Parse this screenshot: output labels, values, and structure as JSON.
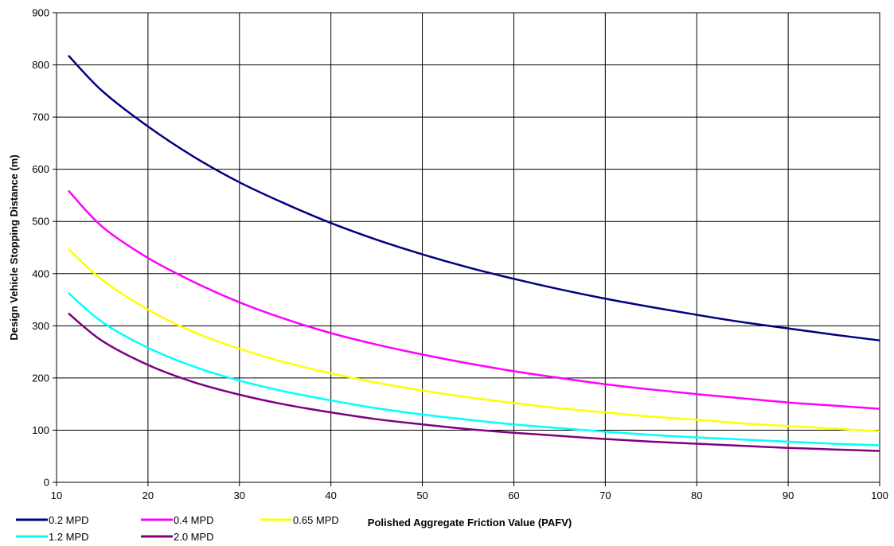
{
  "chart_data": {
    "type": "line",
    "title": "",
    "xlabel": "Polished Aggregate Friction Value  (PAFV)",
    "ylabel": "Design Vehicle Stopping Distance (m)",
    "xlim": [
      10,
      100
    ],
    "ylim": [
      0,
      900
    ],
    "xticks": [
      "10",
      "20",
      "30",
      "40",
      "50",
      "60",
      "70",
      "80",
      "90",
      "100"
    ],
    "yticks": [
      "0",
      "100",
      "200",
      "300",
      "400",
      "500",
      "600",
      "700",
      "800",
      "900"
    ],
    "grid": true,
    "legend_position": "bottom-left",
    "series": [
      {
        "name": "0.2 MPD",
        "color": "#000080",
        "x": [
          11.3,
          15,
          20,
          25,
          30,
          35,
          40,
          45,
          50,
          55,
          60,
          65,
          70,
          75,
          80,
          85,
          90,
          95,
          100
        ],
        "y": [
          818,
          750,
          682,
          624,
          575,
          534,
          497,
          465,
          437,
          412,
          390,
          370,
          352,
          336,
          321,
          307,
          295,
          283,
          272
        ]
      },
      {
        "name": "0.4 MPD",
        "color": "#FF00FF",
        "x": [
          11.3,
          15,
          20,
          25,
          30,
          35,
          40,
          45,
          50,
          55,
          60,
          65,
          70,
          75,
          80,
          85,
          90,
          95,
          100
        ],
        "y": [
          559,
          490,
          430,
          384,
          345,
          313,
          286,
          264,
          245,
          228,
          213,
          200,
          188,
          178,
          169,
          161,
          153,
          147,
          141
        ]
      },
      {
        "name": "0.65 MPD",
        "color": "#FFFF00",
        "x": [
          11.3,
          15,
          20,
          25,
          30,
          35,
          40,
          45,
          50,
          55,
          60,
          65,
          70,
          75,
          80,
          85,
          90,
          95,
          100
        ],
        "y": [
          447,
          388,
          331,
          288,
          256,
          230,
          209,
          191,
          176,
          163,
          152,
          142,
          134,
          126,
          120,
          113,
          108,
          103,
          98
        ]
      },
      {
        "name": "1.2 MPD",
        "color": "#00FFFF",
        "x": [
          11.3,
          15,
          20,
          25,
          30,
          35,
          40,
          45,
          50,
          55,
          60,
          65,
          70,
          75,
          80,
          85,
          90,
          95,
          100
        ],
        "y": [
          363,
          307,
          258,
          222,
          195,
          174,
          157,
          142,
          130,
          120,
          111,
          104,
          97,
          91,
          86,
          82,
          78,
          74,
          71
        ]
      },
      {
        "name": "2.0 MPD",
        "color": "#800080",
        "x": [
          11.3,
          15,
          20,
          25,
          30,
          35,
          40,
          45,
          50,
          55,
          60,
          65,
          70,
          75,
          80,
          85,
          90,
          95,
          100
        ],
        "y": [
          324,
          271,
          225,
          192,
          168,
          149,
          134,
          121,
          111,
          102,
          95,
          89,
          83,
          78,
          74,
          70,
          66,
          63,
          60
        ]
      }
    ]
  }
}
